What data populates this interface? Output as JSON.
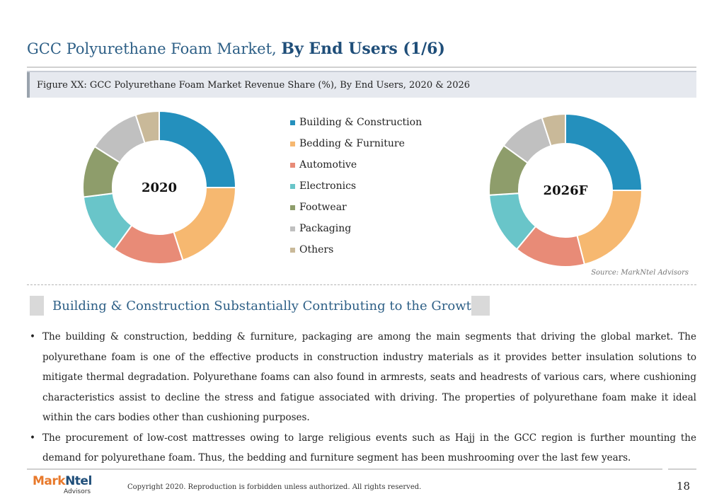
{
  "header": {
    "title_prefix": "GCC Polyurethane Foam Market, ",
    "title_bold": "By End Users (1/6)",
    "figure_caption": "Figure XX: GCC Polyurethane Foam Market Revenue Share (%), By End Users, 2020 & 2026"
  },
  "chart_data": [
    {
      "type": "donut",
      "title": "2020",
      "categories": [
        "Building & Construction",
        "Bedding & Furniture",
        "Automotive",
        "Electronics",
        "Footwear",
        "Packaging",
        "Others"
      ],
      "values": [
        25,
        20,
        15,
        13,
        11,
        11,
        5
      ],
      "unit": "%"
    },
    {
      "type": "donut",
      "title": "2026F",
      "categories": [
        "Building & Construction",
        "Bedding & Furniture",
        "Automotive",
        "Electronics",
        "Footwear",
        "Packaging",
        "Others"
      ],
      "values": [
        25,
        21,
        15,
        13,
        11,
        10,
        5
      ],
      "unit": "%"
    }
  ],
  "legend": [
    {
      "label": "Building & Construction",
      "color": "#2490bd"
    },
    {
      "label": "Bedding & Furniture",
      "color": "#f6b870"
    },
    {
      "label": "Automotive",
      "color": "#e88b77"
    },
    {
      "label": "Electronics",
      "color": "#69c5c9"
    },
    {
      "label": "Footwear",
      "color": "#8e9d6b"
    },
    {
      "label": "Packaging",
      "color": "#c0c0c0"
    },
    {
      "label": "Others",
      "color": "#c9b999"
    }
  ],
  "source": "Source: MarkNtel Advisors",
  "section": {
    "title": "Building & Construction Substantially Contributing to the Growth",
    "bullets": [
      "The building & construction, bedding & furniture, packaging are among the main segments that driving the global market. The polyurethane foam is one of the effective products in construction industry materials as it provides better insulation solutions to mitigate thermal degradation. Polyurethane foams can also found in armrests, seats and headrests of various cars, where cushioning characteristics assist to decline the stress and fatigue associated with driving. The properties of polyurethane foam make it ideal within the cars bodies other than cushioning purposes.",
      "The procurement of low-cost mattresses owing to large religious events such as Hajj in the GCC region is further mounting the demand for polyurethane foam. Thus, the bedding and furniture segment has been mushrooming over the last few years."
    ],
    "bullet_char": "•"
  },
  "footer": {
    "logo_brand_m": "Mark",
    "logo_brand_rest": "Ntel",
    "logo_sub": "Advisors",
    "copyright": "Copyright 2020. Reproduction is forbidden unless authorized. All rights reserved.",
    "page_number": "18"
  }
}
